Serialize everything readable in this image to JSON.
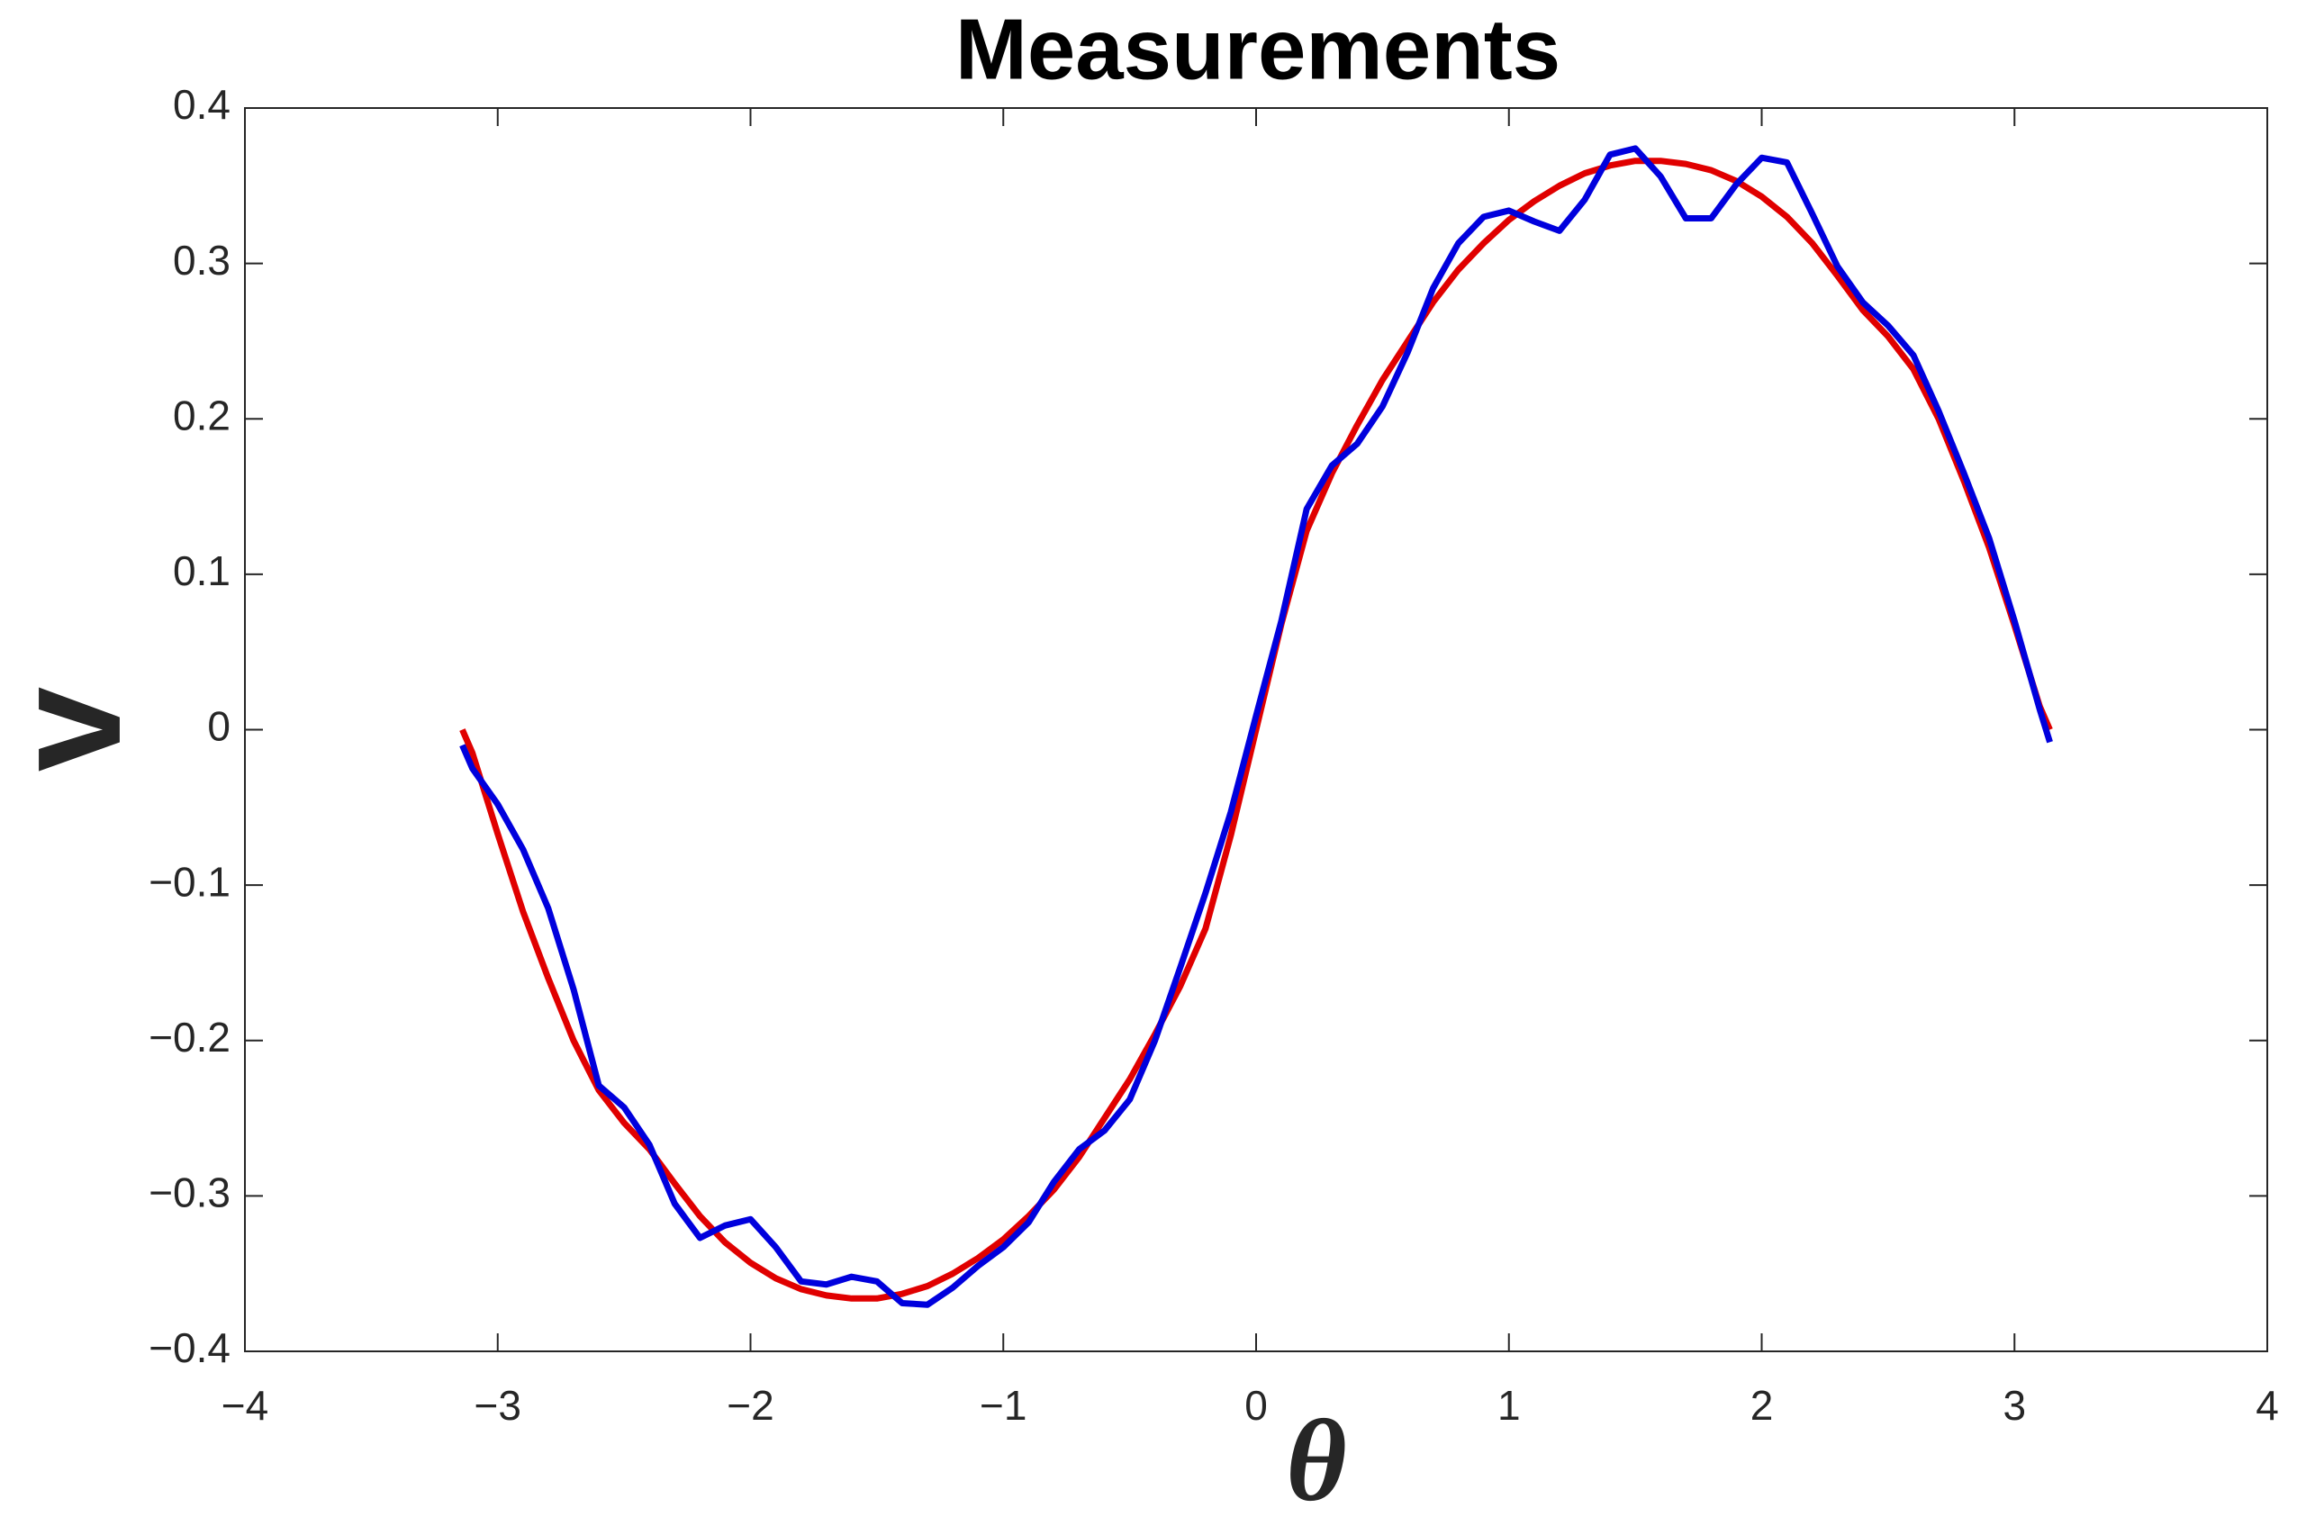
{
  "chart_data": {
    "type": "line",
    "title": "Measurements",
    "x_label": "θ",
    "y_label": "v",
    "x": [
      -3.14,
      -3.1,
      -3.0,
      -2.9,
      -2.8,
      -2.7,
      -2.6,
      -2.5,
      -2.4,
      -2.3,
      -2.2,
      -2.1,
      -2.0,
      -1.9,
      -1.8,
      -1.7,
      -1.6,
      -1.5,
      -1.4,
      -1.3,
      -1.2,
      -1.1,
      -1.0,
      -0.9,
      -0.8,
      -0.7,
      -0.6,
      -0.5,
      -0.4,
      -0.3,
      -0.2,
      -0.1,
      0,
      0.1,
      0.2,
      0.3,
      0.4,
      0.5,
      0.6,
      0.7,
      0.8,
      0.9,
      1.0,
      1.1,
      1.2,
      1.3,
      1.4,
      1.5,
      1.6,
      1.7,
      1.8,
      1.9,
      2.0,
      2.1,
      2.2,
      2.3,
      2.4,
      2.5,
      2.6,
      2.7,
      2.8,
      2.9,
      3.0,
      3.1,
      3.14
    ],
    "series": [
      {
        "color": "#e00000",
        "values": [
          0.0,
          -0.015,
          -0.067,
          -0.117,
          -0.16,
          -0.2,
          -0.232,
          -0.253,
          -0.27,
          -0.292,
          -0.313,
          -0.33,
          -0.343,
          -0.353,
          -0.36,
          -0.364,
          -0.366,
          -0.366,
          -0.363,
          -0.358,
          -0.35,
          -0.34,
          -0.328,
          -0.313,
          -0.296,
          -0.275,
          -0.25,
          -0.225,
          -0.196,
          -0.165,
          -0.128,
          -0.068,
          0,
          0.068,
          0.128,
          0.165,
          0.196,
          0.225,
          0.25,
          0.275,
          0.296,
          0.313,
          0.328,
          0.34,
          0.35,
          0.358,
          0.363,
          0.366,
          0.366,
          0.364,
          0.36,
          0.353,
          0.343,
          0.33,
          0.313,
          0.292,
          0.27,
          0.253,
          0.232,
          0.2,
          0.16,
          0.117,
          0.067,
          0.015,
          0.0
        ]
      },
      {
        "color": "#0000dd",
        "values": [
          -0.01,
          -0.025,
          -0.048,
          -0.077,
          -0.115,
          -0.167,
          -0.229,
          -0.243,
          -0.267,
          -0.305,
          -0.327,
          -0.319,
          -0.315,
          -0.333,
          -0.355,
          -0.357,
          -0.352,
          -0.355,
          -0.369,
          -0.37,
          -0.359,
          -0.345,
          -0.333,
          -0.317,
          -0.291,
          -0.27,
          -0.258,
          -0.238,
          -0.2,
          -0.153,
          -0.105,
          -0.053,
          0.009,
          0.07,
          0.142,
          0.17,
          0.184,
          0.208,
          0.243,
          0.284,
          0.313,
          0.33,
          0.334,
          0.327,
          0.321,
          0.341,
          0.37,
          0.374,
          0.356,
          0.329,
          0.329,
          0.351,
          0.368,
          0.365,
          0.332,
          0.298,
          0.275,
          0.26,
          0.241,
          0.205,
          0.165,
          0.123,
          0.07,
          0.013,
          -0.008
        ]
      }
    ],
    "xlim": [
      -4,
      4
    ],
    "xticks": [
      {
        "value": -4,
        "label": "−4"
      },
      {
        "value": -3,
        "label": "−3"
      },
      {
        "value": -2,
        "label": "−2"
      },
      {
        "value": -1,
        "label": "−1"
      },
      0,
      1,
      2,
      3,
      4
    ],
    "ylim": [
      -0.4,
      0.4
    ],
    "yticks": [
      {
        "value": -0.4,
        "label": "−0.4"
      },
      {
        "value": -0.3,
        "label": "−0.3"
      },
      {
        "value": -0.2,
        "label": "−0.2"
      },
      {
        "value": -0.1,
        "label": "−0.1"
      },
      0,
      0.1,
      0.2,
      0.3,
      0.4
    ],
    "grid": false
  }
}
